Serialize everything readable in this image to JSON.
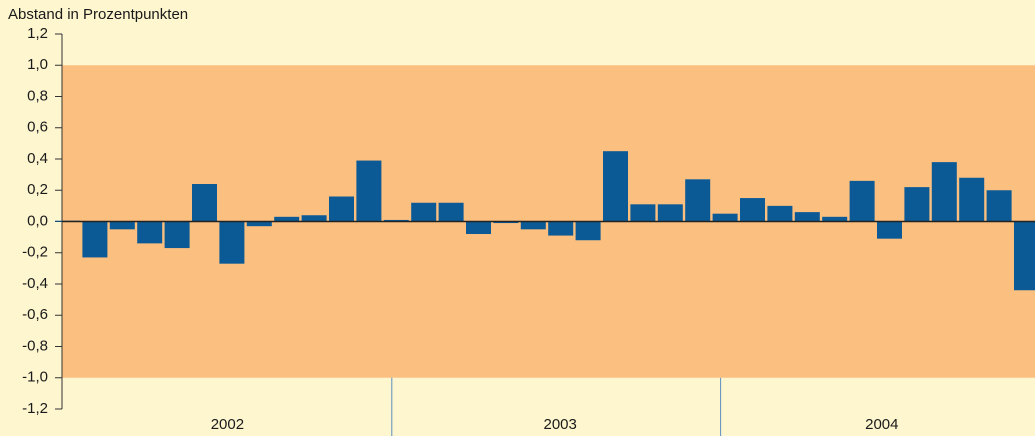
{
  "chart_data": {
    "type": "bar",
    "y_label": "Abstand in Prozentpunkten",
    "categories": [
      null,
      null,
      null,
      null,
      null,
      null,
      null,
      null,
      null,
      null,
      null,
      null,
      null,
      null,
      null,
      null,
      null,
      null,
      null,
      null,
      null,
      null,
      null,
      null,
      null,
      null,
      null,
      null,
      null,
      null,
      null,
      null,
      null,
      null,
      null,
      null
    ],
    "groups": [
      "2002",
      "2003",
      "2004"
    ],
    "values": [
      0.005,
      -0.23,
      -0.05,
      -0.14,
      -0.17,
      0.24,
      -0.27,
      -0.03,
      0.03,
      0.04,
      0.16,
      0.39,
      0.01,
      0.12,
      0.12,
      -0.08,
      -0.01,
      -0.05,
      -0.09,
      -0.12,
      0.45,
      0.11,
      0.11,
      0.27,
      0.05,
      0.15,
      0.1,
      0.06,
      0.03,
      0.26,
      -0.11,
      0.22,
      0.38,
      0.28,
      0.2,
      -0.44
    ],
    "color": "#0b5a96",
    "band": {
      "from": -1,
      "to": 1,
      "color": "#fbbf80"
    },
    "ylim": [
      -1.2,
      1.2
    ],
    "yticks": [
      {
        "value": -1.2,
        "label": "-1,2"
      },
      {
        "value": -1,
        "label": "-1,0"
      },
      {
        "value": -0.8,
        "label": "-0,8"
      },
      {
        "value": -0.6,
        "label": "-0,6"
      },
      {
        "value": -0.4,
        "label": "-0,4"
      },
      {
        "value": -0.2,
        "label": "-0,2"
      },
      {
        "value": 0,
        "label": "0,0"
      },
      {
        "value": 0.2,
        "label": "0,2"
      },
      {
        "value": 0.4,
        "label": "0,4"
      },
      {
        "value": 0.6,
        "label": "0,6"
      },
      {
        "value": 0.8,
        "label": "0,8"
      },
      {
        "value": 1,
        "label": "1,0"
      },
      {
        "value": 1.2,
        "label": "1,2"
      }
    ]
  }
}
